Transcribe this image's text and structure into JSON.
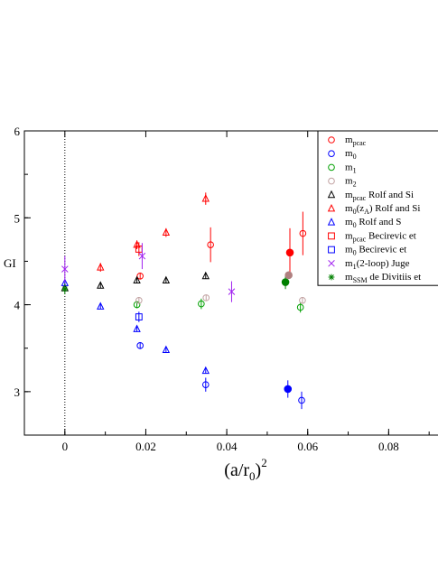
{
  "chart_data": {
    "type": "scatter",
    "title": "",
    "xlabel": "(a/r0)^2",
    "ylabel": "GI",
    "xlim": [
      -0.01,
      0.1
    ],
    "ylim": [
      2.5,
      6
    ],
    "xticks": [
      "0",
      "0.02",
      "0.04",
      "0.06",
      "0.08"
    ],
    "xtick_values": [
      0,
      0.02,
      0.04,
      0.06,
      0.08
    ],
    "yticks": [
      "3",
      "4",
      "5",
      "6"
    ],
    "ytick_values": [
      3,
      4,
      5,
      6
    ],
    "vline_x": 0,
    "legend_position": "top-right",
    "series": [
      {
        "key": "m_pcac_open",
        "label": "m_pcac",
        "marker": "circle",
        "filled": false,
        "color": "#ff0000",
        "points": [
          [
            0.0186,
            4.33,
            0.04
          ],
          [
            0.036,
            4.69,
            0.2
          ],
          [
            0.0588,
            4.82,
            0.25
          ]
        ]
      },
      {
        "key": "m0_open",
        "label": "m_0",
        "marker": "circle",
        "filled": false,
        "color": "#0000ff",
        "points": [
          [
            0.0186,
            3.53,
            0.04
          ],
          [
            0.0348,
            3.08,
            0.08
          ],
          [
            0.0585,
            2.9,
            0.1
          ]
        ]
      },
      {
        "key": "m1_open",
        "label": "m_1",
        "marker": "circle",
        "filled": false,
        "color": "#00a000",
        "points": [
          [
            0.0178,
            4.0,
            0.04
          ],
          [
            0.0337,
            4.01,
            0.06
          ],
          [
            0.0582,
            3.97,
            0.06
          ]
        ]
      },
      {
        "key": "m2_open",
        "label": "m_2",
        "marker": "circle",
        "filled": false,
        "color": "#c0a0a0",
        "points": [
          [
            0.0183,
            4.05,
            0.03
          ],
          [
            0.0349,
            4.08,
            0.03
          ],
          [
            0.0587,
            4.05,
            0.03
          ]
        ]
      },
      {
        "key": "m_pcac_rs",
        "label": "m_pcac",
        "source": "Rolf and Si",
        "marker": "triangle",
        "filled": false,
        "color": "#000000",
        "points": [
          [
            0.0,
            4.19,
            0.02
          ],
          [
            0.0088,
            4.22,
            0.03
          ],
          [
            0.0178,
            4.28,
            0.03
          ],
          [
            0.025,
            4.28,
            0.03
          ],
          [
            0.0348,
            4.33,
            0.03
          ]
        ]
      },
      {
        "key": "m0zA_rs",
        "label": "m_0(z_A)",
        "source": "Rolf and Si",
        "marker": "triangle",
        "filled": false,
        "color": "#ff0000",
        "points": [
          [
            0.0088,
            4.43,
            0.05
          ],
          [
            0.0178,
            4.69,
            0.05
          ],
          [
            0.025,
            4.83,
            0.05
          ],
          [
            0.0348,
            5.22,
            0.07
          ]
        ]
      },
      {
        "key": "m0_rs",
        "label": "m_0",
        "source": "Rolf and Si",
        "marker": "triangle",
        "filled": false,
        "color": "#0000ff",
        "points": [
          [
            0.0,
            4.25,
            0.02
          ],
          [
            0.0088,
            3.98,
            0.03
          ],
          [
            0.0178,
            3.72,
            0.03
          ],
          [
            0.025,
            3.48,
            0.03
          ],
          [
            0.0348,
            3.24,
            0.03
          ]
        ]
      },
      {
        "key": "m_pcac_bec",
        "label": "m_pcac",
        "source": "Becirevic et",
        "marker": "square",
        "filled": false,
        "color": "#ff0000",
        "points": [
          [
            0.0183,
            4.64,
            0.08
          ]
        ]
      },
      {
        "key": "m0_bec",
        "label": "m_0",
        "source": "Becirevic et",
        "marker": "square",
        "filled": false,
        "color": "#0000ff",
        "points": [
          [
            0.0183,
            3.86,
            0.06
          ]
        ]
      },
      {
        "key": "m1_juge",
        "label": "m_1(2-loop) Juge",
        "marker": "x",
        "filled": false,
        "color": "#a020f0",
        "points": [
          [
            0.0,
            4.41,
            0.15
          ],
          [
            0.0191,
            4.56,
            0.15
          ],
          [
            0.0412,
            4.15,
            0.12
          ]
        ]
      },
      {
        "key": "m_ssm",
        "label": "m_SSM",
        "source": "de Divitiis et",
        "marker": "star",
        "filled": false,
        "color": "#008000",
        "points": [
          [
            0.0,
            4.18,
            0.06
          ]
        ]
      },
      {
        "key": "filled_red",
        "label": "",
        "marker": "circle",
        "filled": true,
        "color": "#ff0000",
        "points": [
          [
            0.0556,
            4.6,
            0.28
          ]
        ]
      },
      {
        "key": "filled_green",
        "label": "",
        "marker": "circle",
        "filled": true,
        "color": "#008000",
        "points": [
          [
            0.0545,
            4.26,
            0.08
          ]
        ]
      },
      {
        "key": "filled_gray",
        "label": "",
        "marker": "circle",
        "filled": true,
        "color": "#b08080",
        "points": [
          [
            0.0553,
            4.34,
            0.03
          ]
        ]
      },
      {
        "key": "filled_blue",
        "label": "",
        "marker": "circle",
        "filled": true,
        "color": "#0000ff",
        "points": [
          [
            0.0551,
            3.03,
            0.1
          ]
        ]
      }
    ],
    "legend": [
      {
        "key": "m_pcac_open",
        "main": "m",
        "sub": "pcac",
        "rest": ""
      },
      {
        "key": "m0_open",
        "main": "m",
        "sub": "0",
        "rest": ""
      },
      {
        "key": "m1_open",
        "main": "m",
        "sub": "1",
        "rest": ""
      },
      {
        "key": "m2_open",
        "main": "m",
        "sub": "2",
        "rest": ""
      },
      {
        "key": "m_pcac_rs",
        "main": "m",
        "sub": "pcac",
        "rest": "Rolf and Si"
      },
      {
        "key": "m0zA_rs",
        "main": "m",
        "sub": "0",
        "rest": "(z_A)   Rolf and Si"
      },
      {
        "key": "m0_rs",
        "main": "m",
        "sub": "0",
        "rest": "Rolf and S"
      },
      {
        "key": "m_pcac_bec",
        "main": "m",
        "sub": "pcac",
        "rest": "Becirevic et"
      },
      {
        "key": "m0_bec",
        "main": "m",
        "sub": "0",
        "rest": "Becirevic et"
      },
      {
        "key": "m1_juge",
        "main": "m",
        "sub": "1",
        "rest": "(2-loop) Juge"
      },
      {
        "key": "m_ssm",
        "main": "m",
        "sub": "SSM",
        "rest": "de Divitiis et"
      }
    ]
  }
}
